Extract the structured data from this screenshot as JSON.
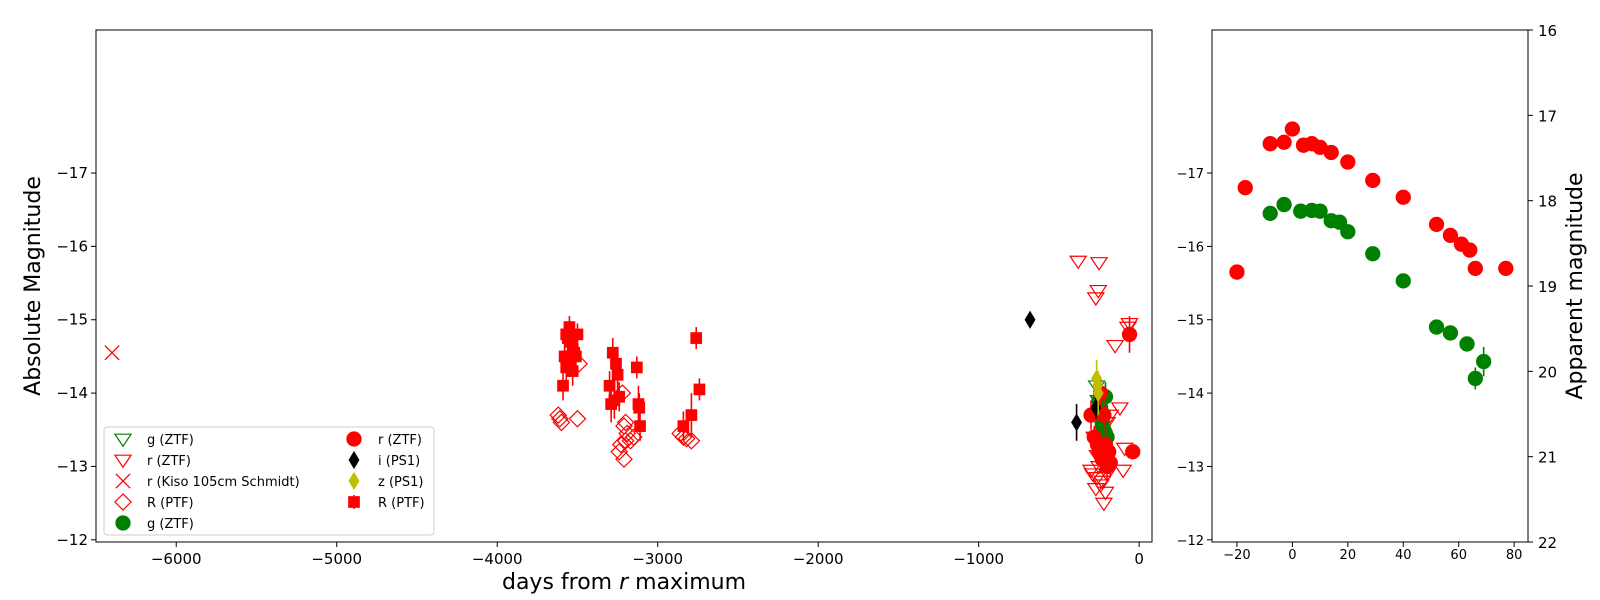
{
  "chart_data": [
    {
      "type": "scatter",
      "panel": "left",
      "xlabel": "days from r maximum",
      "ylabel": "Absolute Magnitude",
      "xlim": [
        -6500,
        80
      ],
      "ylim": [
        -11.97,
        -18.95
      ],
      "y_inverted": true,
      "grid": false,
      "legend_position": "lower-left",
      "xticks": [
        -6000,
        -5000,
        -4000,
        -3000,
        -2000,
        -1000,
        0
      ],
      "xtick_labels": [
        "−6000",
        "−5000",
        "−4000",
        "−3000",
        "−2000",
        "−1000",
        "0"
      ],
      "yticks": [
        -12,
        -13,
        -14,
        -15,
        -16,
        -17
      ],
      "ytick_labels": [
        "−12",
        "−13",
        "−14",
        "−15",
        "−16",
        "−17"
      ],
      "legend": [
        {
          "label": "g (ZTF)",
          "marker": "triangle-down-open",
          "color": "#008000"
        },
        {
          "label": "r (ZTF)",
          "marker": "triangle-down-open",
          "color": "#ff0000"
        },
        {
          "label": "r (Kiso 105cm Schmidt)",
          "marker": "x",
          "color": "#ff0000"
        },
        {
          "label": "R (PTF)",
          "marker": "diamond-open",
          "color": "#ff0000"
        },
        {
          "label": "g (ZTF)",
          "marker": "circle",
          "color": "#008000"
        },
        {
          "label": "r (ZTF)",
          "marker": "circle",
          "color": "#ff0000"
        },
        {
          "label": "i (PS1)",
          "marker": "diamond",
          "color": "#000000"
        },
        {
          "label": "z (PS1)",
          "marker": "diamond",
          "color": "#bfbf00"
        },
        {
          "label": "R (PTF)",
          "marker": "square",
          "color": "#ff0000"
        }
      ],
      "series": [
        {
          "legend_index": 0,
          "marker": "triangle-down-open",
          "color": "#008000",
          "x": [
            -265,
            -255
          ],
          "y": [
            -14.1,
            -13.9
          ]
        },
        {
          "legend_index": 1,
          "marker": "triangle-down-open",
          "color": "#ff0000",
          "x": [
            -380,
            -250,
            -270,
            -255,
            -60,
            -70,
            -150,
            -120,
            -180,
            -240,
            -210,
            -250,
            -300,
            -290,
            -260,
            -230,
            -200,
            -270,
            -240,
            -210,
            -280,
            -250,
            -230,
            -220,
            -200,
            -90,
            -100,
            -260,
            -240,
            -220,
            -200
          ],
          "y": [
            -15.8,
            -15.78,
            -15.3,
            -15.4,
            -14.95,
            -14.9,
            -14.65,
            -13.8,
            -13.7,
            -13.2,
            -13.1,
            -13.0,
            -12.95,
            -12.9,
            -12.85,
            -12.8,
            -12.9,
            -12.7,
            -12.75,
            -12.65,
            -13.4,
            -13.35,
            -13.3,
            -13.25,
            -13.05,
            -13.25,
            -12.95,
            -13.15,
            -13.1,
            -12.5,
            -13.6
          ],
          "err": []
        },
        {
          "legend_index": 2,
          "marker": "x",
          "color": "#ff0000",
          "x": [
            -6400
          ],
          "y": [
            -14.55
          ]
        },
        {
          "legend_index": 3,
          "marker": "diamond-open",
          "color": "#ff0000",
          "x": [
            -3620,
            -3610,
            -3600,
            -3500,
            -3490,
            -3220,
            -3200,
            -3210,
            -3190,
            -3170,
            -3230,
            -3240,
            -3210,
            -3200,
            -3150,
            -2860,
            -2840,
            -2820,
            -2790
          ],
          "y": [
            -13.7,
            -13.65,
            -13.6,
            -13.65,
            -14.4,
            -14.0,
            -13.6,
            -13.55,
            -13.45,
            -13.35,
            -13.3,
            -13.2,
            -13.1,
            -13.35,
            -13.4,
            -13.45,
            -13.4,
            -13.38,
            -13.35
          ]
        },
        {
          "legend_index": 4,
          "marker": "circle",
          "color": "#008000",
          "x": [
            -250,
            -240,
            -230,
            -220,
            -210,
            -200,
            -230,
            -210,
            -220
          ],
          "y": [
            -13.9,
            -13.8,
            -13.6,
            -13.5,
            -13.45,
            -13.4,
            -13.55,
            -13.95,
            -13.7
          ],
          "err": [
            0.25,
            0.3,
            0.2,
            0.2,
            0.2,
            0.2,
            0.3,
            0.2,
            0.3
          ]
        },
        {
          "legend_index": 5,
          "marker": "circle",
          "color": "#ff0000",
          "x": [
            -300,
            -280,
            -250,
            -230,
            -210,
            -200,
            -190,
            -180,
            -220,
            -240,
            -260,
            -60,
            -40
          ],
          "y": [
            -13.7,
            -13.4,
            -13.2,
            -13.1,
            -13.3,
            -13.0,
            -13.2,
            -13.05,
            -13.7,
            -14.0,
            -13.3,
            -14.8,
            -13.2
          ],
          "err": [
            0.2,
            0.15,
            0.2,
            0.2,
            0.2,
            0.2,
            0.2,
            0.2,
            0.2,
            0.2,
            0.2,
            0.25,
            0.1
          ]
        },
        {
          "legend_index": 6,
          "marker": "diamond",
          "color": "#000000",
          "x": [
            -680,
            -390,
            -270
          ],
          "y": [
            -15.0,
            -13.6,
            -13.8
          ],
          "err": [
            0,
            0.25,
            0.15
          ]
        },
        {
          "legend_index": 7,
          "marker": "diamond",
          "color": "#bfbf00",
          "x": [
            -265,
            -255,
            -260
          ],
          "y": [
            -14.2,
            -14.0,
            -14.1
          ],
          "err": [
            0.25,
            0.3,
            0.2
          ]
        },
        {
          "legend_index": 8,
          "marker": "square",
          "color": "#ff0000",
          "x": [
            -3570,
            -3560,
            -3550,
            -3540,
            -3530,
            -3520,
            -3510,
            -3500,
            -3580,
            -3570,
            -3560,
            -3550,
            -3530,
            -3590,
            -3300,
            -3280,
            -3260,
            -3250,
            -3270,
            -3290,
            -3240,
            -3130,
            -3120,
            -3115,
            -3110,
            -2840,
            -2790,
            -2760,
            -2740
          ],
          "y": [
            -14.8,
            -14.75,
            -14.9,
            -14.7,
            -14.6,
            -14.55,
            -14.5,
            -14.8,
            -14.5,
            -14.35,
            -14.45,
            -14.4,
            -14.3,
            -14.1,
            -14.1,
            -14.55,
            -14.4,
            -14.25,
            -13.9,
            -13.85,
            -13.95,
            -14.35,
            -13.85,
            -13.8,
            -13.55,
            -13.55,
            -13.7,
            -14.75,
            -14.05
          ],
          "err": [
            0.15,
            0.15,
            0.15,
            0.2,
            0.2,
            0.15,
            0.15,
            0.15,
            0.2,
            0.2,
            0.2,
            0.15,
            0.2,
            0.2,
            0.2,
            0.2,
            0.2,
            0.25,
            0.25,
            0.25,
            0.2,
            0.15,
            0.25,
            0.2,
            0.2,
            0.2,
            0.3,
            0.15,
            0.15
          ]
        }
      ]
    },
    {
      "type": "scatter",
      "panel": "right",
      "xlabel": "",
      "ylabel": "Apparent magnitude",
      "xlim": [
        -29,
        85
      ],
      "ylim": [
        -11.97,
        -18.95
      ],
      "y_inverted": true,
      "secondary_ylim": [
        22,
        16
      ],
      "grid": false,
      "xticks": [
        -20,
        0,
        20,
        40,
        60,
        80
      ],
      "xtick_labels": [
        "−20",
        "0",
        "20",
        "40",
        "60",
        "80"
      ],
      "yticks": [
        -12,
        -13,
        -14,
        -15,
        -16,
        -17
      ],
      "ytick_labels": [
        "−12",
        "−13",
        "−14",
        "−15",
        "−16",
        "−17"
      ],
      "secondary_yticks": [
        16,
        17,
        18,
        19,
        20,
        21,
        22
      ],
      "secondary_ytick_labels": [
        "16",
        "17",
        "18",
        "19",
        "20",
        "21",
        "22"
      ],
      "series": [
        {
          "marker": "circle",
          "color": "#ff0000",
          "x": [
            -20,
            -17,
            -8,
            -3,
            0,
            4,
            7,
            10,
            14,
            20,
            29,
            40,
            52,
            57,
            61,
            64,
            66,
            77
          ],
          "y": [
            -15.65,
            -16.8,
            -17.4,
            -17.42,
            -17.6,
            -17.38,
            -17.4,
            -17.35,
            -17.28,
            -17.15,
            -16.9,
            -16.67,
            -16.3,
            -16.15,
            -16.03,
            -15.95,
            -15.7,
            -15.7
          ],
          "err": [
            0.1,
            0.05,
            0.05,
            0.05,
            0.05,
            0.05,
            0.05,
            0.05,
            0.05,
            0.05,
            0.05,
            0.05,
            0.05,
            0.05,
            0.05,
            0.05,
            0.1,
            0.1
          ]
        },
        {
          "marker": "circle",
          "color": "#008000",
          "x": [
            -8,
            -3,
            3,
            7,
            10,
            14,
            17,
            20,
            29,
            40,
            52,
            57,
            63,
            66,
            69
          ],
          "y": [
            -16.45,
            -16.57,
            -16.48,
            -16.49,
            -16.48,
            -16.35,
            -16.33,
            -16.2,
            -15.9,
            -15.53,
            -14.9,
            -14.82,
            -14.67,
            -14.2,
            -14.43
          ],
          "err": [
            0.05,
            0.05,
            0.05,
            0.05,
            0.05,
            0.05,
            0.05,
            0.05,
            0.05,
            0.08,
            0.08,
            0.08,
            0.1,
            0.15,
            0.2
          ]
        }
      ]
    }
  ]
}
